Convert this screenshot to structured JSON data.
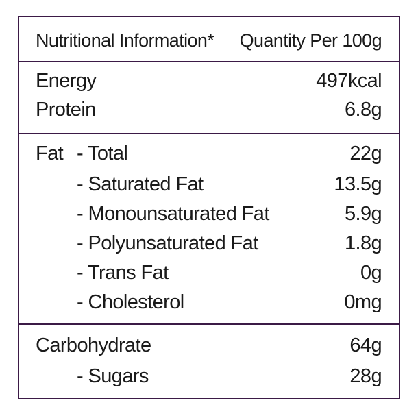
{
  "header": {
    "title": "Nutritional Information*",
    "quantity_label": "Quantity Per 100g"
  },
  "rows": {
    "energy": {
      "label": "Energy",
      "value": "497kcal"
    },
    "protein": {
      "label": "Protein",
      "value": "6.8g"
    },
    "fat_prefix": "Fat",
    "fat_total": {
      "label": "- Total",
      "value": "22g"
    },
    "saturated_fat": {
      "label": "- Saturated Fat",
      "value": "13.5g"
    },
    "monounsaturated_fat": {
      "label": "- Monounsaturated Fat",
      "value": "5.9g"
    },
    "polyunsaturated_fat": {
      "label": "- Polyunsaturated Fat",
      "value": "1.8g"
    },
    "trans_fat": {
      "label": "- Trans Fat",
      "value": "0g"
    },
    "cholesterol": {
      "label": "- Cholesterol",
      "value": "0mg"
    },
    "carbohydrate": {
      "label": "Carbohydrate",
      "value": "64g"
    },
    "sugars": {
      "label": "- Sugars",
      "value": "28g"
    }
  },
  "colors": {
    "border": "#3b1a46",
    "text": "#1a1a1a"
  }
}
